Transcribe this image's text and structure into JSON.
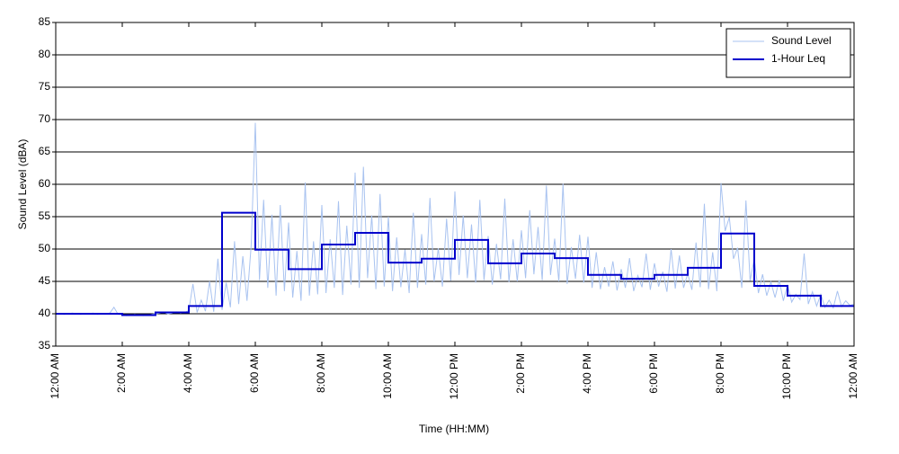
{
  "chart_data": {
    "type": "line",
    "xlabel": "Time (HH:MM)",
    "ylabel": "Sound Level (dBA)",
    "xlim": [
      0,
      24
    ],
    "ylim": [
      35,
      85
    ],
    "xticks": [
      {
        "value": 0,
        "label": "12:00 AM"
      },
      {
        "value": 2,
        "label": "2:00 AM"
      },
      {
        "value": 4,
        "label": "4:00 AM"
      },
      {
        "value": 6,
        "label": "6:00 AM"
      },
      {
        "value": 8,
        "label": "8:00 AM"
      },
      {
        "value": 10,
        "label": "10:00 AM"
      },
      {
        "value": 12,
        "label": "12:00 PM"
      },
      {
        "value": 14,
        "label": "2:00 PM"
      },
      {
        "value": 16,
        "label": "4:00 PM"
      },
      {
        "value": 18,
        "label": "6:00 PM"
      },
      {
        "value": 20,
        "label": "8:00 PM"
      },
      {
        "value": 22,
        "label": "10:00 PM"
      },
      {
        "value": 24,
        "label": "12:00 AM"
      }
    ],
    "yticks": [
      35,
      40,
      45,
      50,
      55,
      60,
      65,
      70,
      75,
      80,
      85
    ],
    "grid": true,
    "legend": "upper right",
    "series": [
      {
        "name": "Sound Level",
        "color": "#a9c3f0",
        "drawstyle": "default",
        "x": [
          0,
          0.125,
          0.25,
          0.375,
          0.5,
          0.625,
          0.75,
          0.875,
          1,
          1.125,
          1.25,
          1.375,
          1.5,
          1.625,
          1.75,
          1.875,
          2,
          2.125,
          2.25,
          2.375,
          2.5,
          2.625,
          2.75,
          2.875,
          3,
          3.125,
          3.25,
          3.375,
          3.5,
          3.625,
          3.75,
          3.875,
          4,
          4.125,
          4.25,
          4.375,
          4.5,
          4.625,
          4.75,
          4.875,
          5,
          5.125,
          5.25,
          5.375,
          5.5,
          5.625,
          5.75,
          5.875,
          6,
          6.125,
          6.25,
          6.375,
          6.5,
          6.625,
          6.75,
          6.875,
          7,
          7.125,
          7.25,
          7.375,
          7.5,
          7.625,
          7.75,
          7.875,
          8,
          8.125,
          8.25,
          8.375,
          8.5,
          8.625,
          8.75,
          8.875,
          9,
          9.125,
          9.25,
          9.375,
          9.5,
          9.625,
          9.75,
          9.875,
          10,
          10.125,
          10.25,
          10.375,
          10.5,
          10.625,
          10.75,
          10.875,
          11,
          11.125,
          11.25,
          11.375,
          11.5,
          11.625,
          11.75,
          11.875,
          12,
          12.125,
          12.25,
          12.375,
          12.5,
          12.625,
          12.75,
          12.875,
          13,
          13.125,
          13.25,
          13.375,
          13.5,
          13.625,
          13.75,
          13.875,
          14,
          14.125,
          14.25,
          14.375,
          14.5,
          14.625,
          14.75,
          14.875,
          15,
          15.125,
          15.25,
          15.375,
          15.5,
          15.625,
          15.75,
          15.875,
          16,
          16.125,
          16.25,
          16.375,
          16.5,
          16.625,
          16.75,
          16.875,
          17,
          17.125,
          17.25,
          17.375,
          17.5,
          17.625,
          17.75,
          17.875,
          18,
          18.125,
          18.25,
          18.375,
          18.5,
          18.625,
          18.75,
          18.875,
          19,
          19.125,
          19.25,
          19.375,
          19.5,
          19.625,
          19.75,
          19.875,
          20,
          20.125,
          20.25,
          20.375,
          20.5,
          20.625,
          20.75,
          20.875,
          21,
          21.125,
          21.25,
          21.375,
          21.5,
          21.625,
          21.75,
          21.875,
          22,
          22.125,
          22.25,
          22.375,
          22.5,
          22.625,
          22.75,
          22.875,
          23,
          23.125,
          23.25,
          23.375,
          23.5,
          23.625,
          23.75,
          23.875,
          24
        ],
        "values": [
          40.1,
          40.0,
          39.9,
          40.0,
          40.1,
          40.0,
          39.9,
          40.0,
          40.0,
          40.1,
          39.9,
          40.0,
          40.0,
          40.1,
          41.0,
          39.9,
          39.8,
          39.7,
          39.8,
          39.9,
          39.8,
          39.7,
          39.8,
          39.9,
          40.0,
          40.1,
          40.2,
          40.0,
          40.1,
          40.3,
          40.1,
          40.2,
          40.5,
          44.6,
          40.2,
          42.1,
          40.4,
          45.0,
          40.3,
          48.5,
          40.6,
          44.8,
          41.0,
          51.2,
          41.5,
          48.9,
          42.0,
          50.5,
          69.5,
          45.2,
          57.6,
          44.0,
          55.3,
          42.8,
          56.8,
          43.5,
          54.1,
          42.5,
          49.7,
          42.0,
          60.3,
          42.8,
          51.2,
          43.0,
          56.8,
          43.2,
          51.5,
          44.0,
          57.4,
          42.9,
          53.6,
          44.5,
          61.8,
          44.0,
          62.7,
          45.5,
          55.2,
          43.8,
          58.5,
          44.2,
          55.0,
          43.5,
          51.8,
          44.1,
          49.9,
          43.2,
          55.6,
          44.0,
          52.3,
          44.5,
          57.9,
          45.0,
          50.1,
          44.2,
          54.7,
          45.1,
          58.9,
          46.0,
          55.2,
          45.5,
          53.8,
          44.8,
          57.6,
          45.2,
          52.0,
          44.5,
          50.8,
          45.3,
          57.8,
          44.9,
          51.5,
          45.0,
          52.9,
          45.5,
          56.0,
          46.1,
          53.4,
          45.2,
          59.8,
          46.0,
          51.6,
          45.0,
          60.1,
          44.6,
          50.3,
          45.4,
          52.2,
          44.8,
          51.9,
          44.0,
          49.5,
          43.8,
          47.2,
          44.2,
          48.1,
          43.6,
          46.9,
          44.0,
          48.6,
          43.5,
          45.9,
          44.1,
          49.3,
          43.7,
          47.8,
          44.2,
          46.5,
          43.4,
          50.0,
          43.9,
          49.0,
          44.0,
          46.2,
          43.7,
          51.0,
          44.1,
          57.0,
          43.8,
          49.5,
          43.5,
          60.2,
          52.8,
          54.9,
          48.5,
          50.2,
          44.0,
          57.5,
          45.1,
          48.5,
          43.2,
          46.1,
          42.8,
          44.9,
          42.5,
          45.2,
          42.0,
          44.5,
          41.8,
          43.0,
          42.2,
          49.3,
          41.5,
          43.4,
          41.2,
          43.0,
          41.0,
          42.1,
          40.9,
          43.5,
          41.1,
          42.0,
          41.3,
          41.5
        ]
      },
      {
        "name": "1-Hour Leq",
        "color": "#0000cc",
        "drawstyle": "steps-post",
        "x": [
          0,
          1,
          2,
          3,
          4,
          5,
          6,
          7,
          8,
          9,
          10,
          11,
          12,
          13,
          14,
          15,
          16,
          17,
          18,
          19,
          20,
          21,
          22,
          23,
          24
        ],
        "values": [
          40.0,
          40.0,
          39.8,
          40.2,
          41.2,
          55.6,
          49.9,
          46.9,
          50.7,
          52.5,
          47.9,
          48.5,
          51.4,
          47.8,
          49.3,
          48.6,
          46.0,
          45.4,
          46.0,
          47.1,
          52.4,
          44.3,
          42.8,
          41.2,
          41.2
        ]
      }
    ]
  }
}
